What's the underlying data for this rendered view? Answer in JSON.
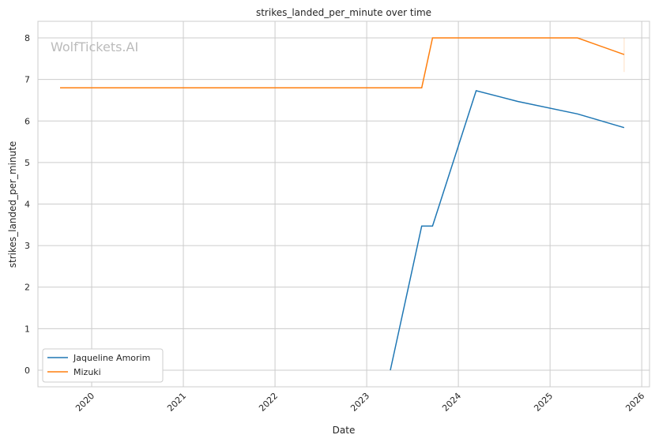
{
  "chart_data": {
    "type": "line",
    "title": "strikes_landed_per_minute over time",
    "xlabel": "Date",
    "ylabel": "strikes_landed_per_minute",
    "watermark": "WolfTickets.AI",
    "xlim": [
      "2019-06-01",
      "2026-02-01"
    ],
    "ylim": [
      -0.4,
      8.4
    ],
    "xticks": [
      "2020",
      "2021",
      "2022",
      "2023",
      "2024",
      "2025",
      "2026"
    ],
    "yticks": [
      0,
      1,
      2,
      3,
      4,
      5,
      6,
      7,
      8
    ],
    "grid": true,
    "legend_position": "lower-left",
    "series": [
      {
        "name": "Jaqueline Amorim",
        "color": "#1f77b4",
        "x": [
          "2023-04-05",
          "2023-08-08",
          "2023-09-20",
          "2024-03-12",
          "2024-08-25",
          "2025-04-20",
          "2025-10-23"
        ],
        "y": [
          0,
          3.47,
          3.47,
          6.73,
          6.47,
          6.17,
          5.84
        ]
      },
      {
        "name": "Mizuki",
        "color": "#ff7f0e",
        "x": [
          "2019-08-28",
          "2023-08-08",
          "2023-09-20",
          "2025-04-20",
          "2025-10-23"
        ],
        "y": [
          6.8,
          6.8,
          8.0,
          8.0,
          7.6
        ],
        "band_at_last_point": [
          7.18,
          8.0
        ]
      }
    ]
  }
}
